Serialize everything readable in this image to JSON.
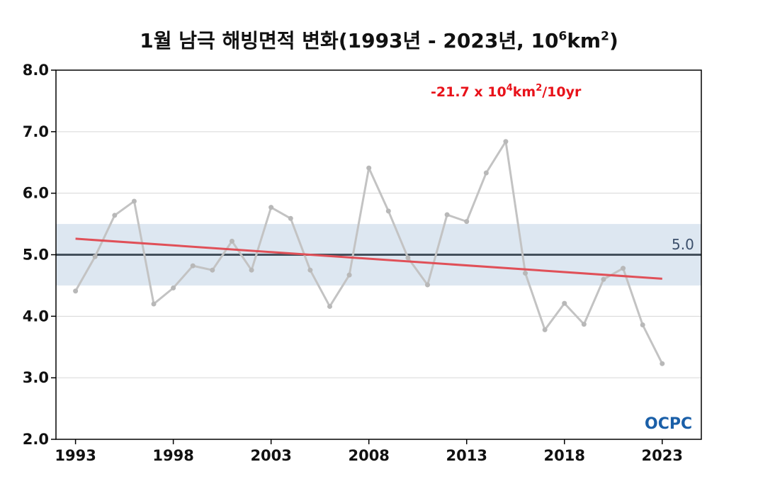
{
  "chart_data": {
    "type": "line",
    "title_main": "1월 남극 해빙면적 변화(1993년 - 2023년, 10",
    "title_sup1": "6",
    "title_mid": "km",
    "title_sup2": "2",
    "title_end": ")",
    "x": [
      1993,
      1994,
      1995,
      1996,
      1997,
      1998,
      1999,
      2000,
      2001,
      2002,
      2003,
      2004,
      2005,
      2006,
      2007,
      2008,
      2009,
      2010,
      2011,
      2012,
      2013,
      2014,
      2015,
      2016,
      2017,
      2018,
      2019,
      2020,
      2021,
      2022,
      2023
    ],
    "series": [
      {
        "values": [
          4.41,
          4.97,
          5.64,
          5.87,
          4.2,
          4.46,
          4.82,
          4.75,
          5.22,
          4.75,
          5.77,
          5.59,
          4.75,
          4.16,
          4.67,
          6.41,
          5.71,
          4.95,
          4.51,
          5.65,
          5.54,
          6.33,
          6.84,
          4.7,
          3.78,
          4.21,
          3.87,
          4.6,
          4.78,
          3.86,
          3.23
        ],
        "color": "#c3c3c3"
      }
    ],
    "trend": {
      "start": [
        1993,
        5.26
      ],
      "end": [
        2023,
        4.61
      ],
      "color": "#e05058"
    },
    "trend_label_text": "-21.7 x 10",
    "trend_label_sup1": "4",
    "trend_label_mid": "km",
    "trend_label_sup2": "2",
    "trend_label_end": "/10yr",
    "reference": {
      "value": 5.0,
      "label": "5.0",
      "color": "#44505c"
    },
    "band": {
      "low": 4.5,
      "high": 5.5,
      "color": "#dde7f1"
    },
    "ylim": [
      2.0,
      8.0
    ],
    "xlim": [
      1992,
      2025
    ],
    "yticks": [
      "2.0",
      "3.0",
      "4.0",
      "5.0",
      "6.0",
      "7.0",
      "8.0"
    ],
    "xticks": [
      "1993",
      "1998",
      "2003",
      "2008",
      "2013",
      "2018",
      "2023"
    ],
    "grid": true
  },
  "logo": {
    "text": "OCPC",
    "color": "#1a5fa8"
  }
}
